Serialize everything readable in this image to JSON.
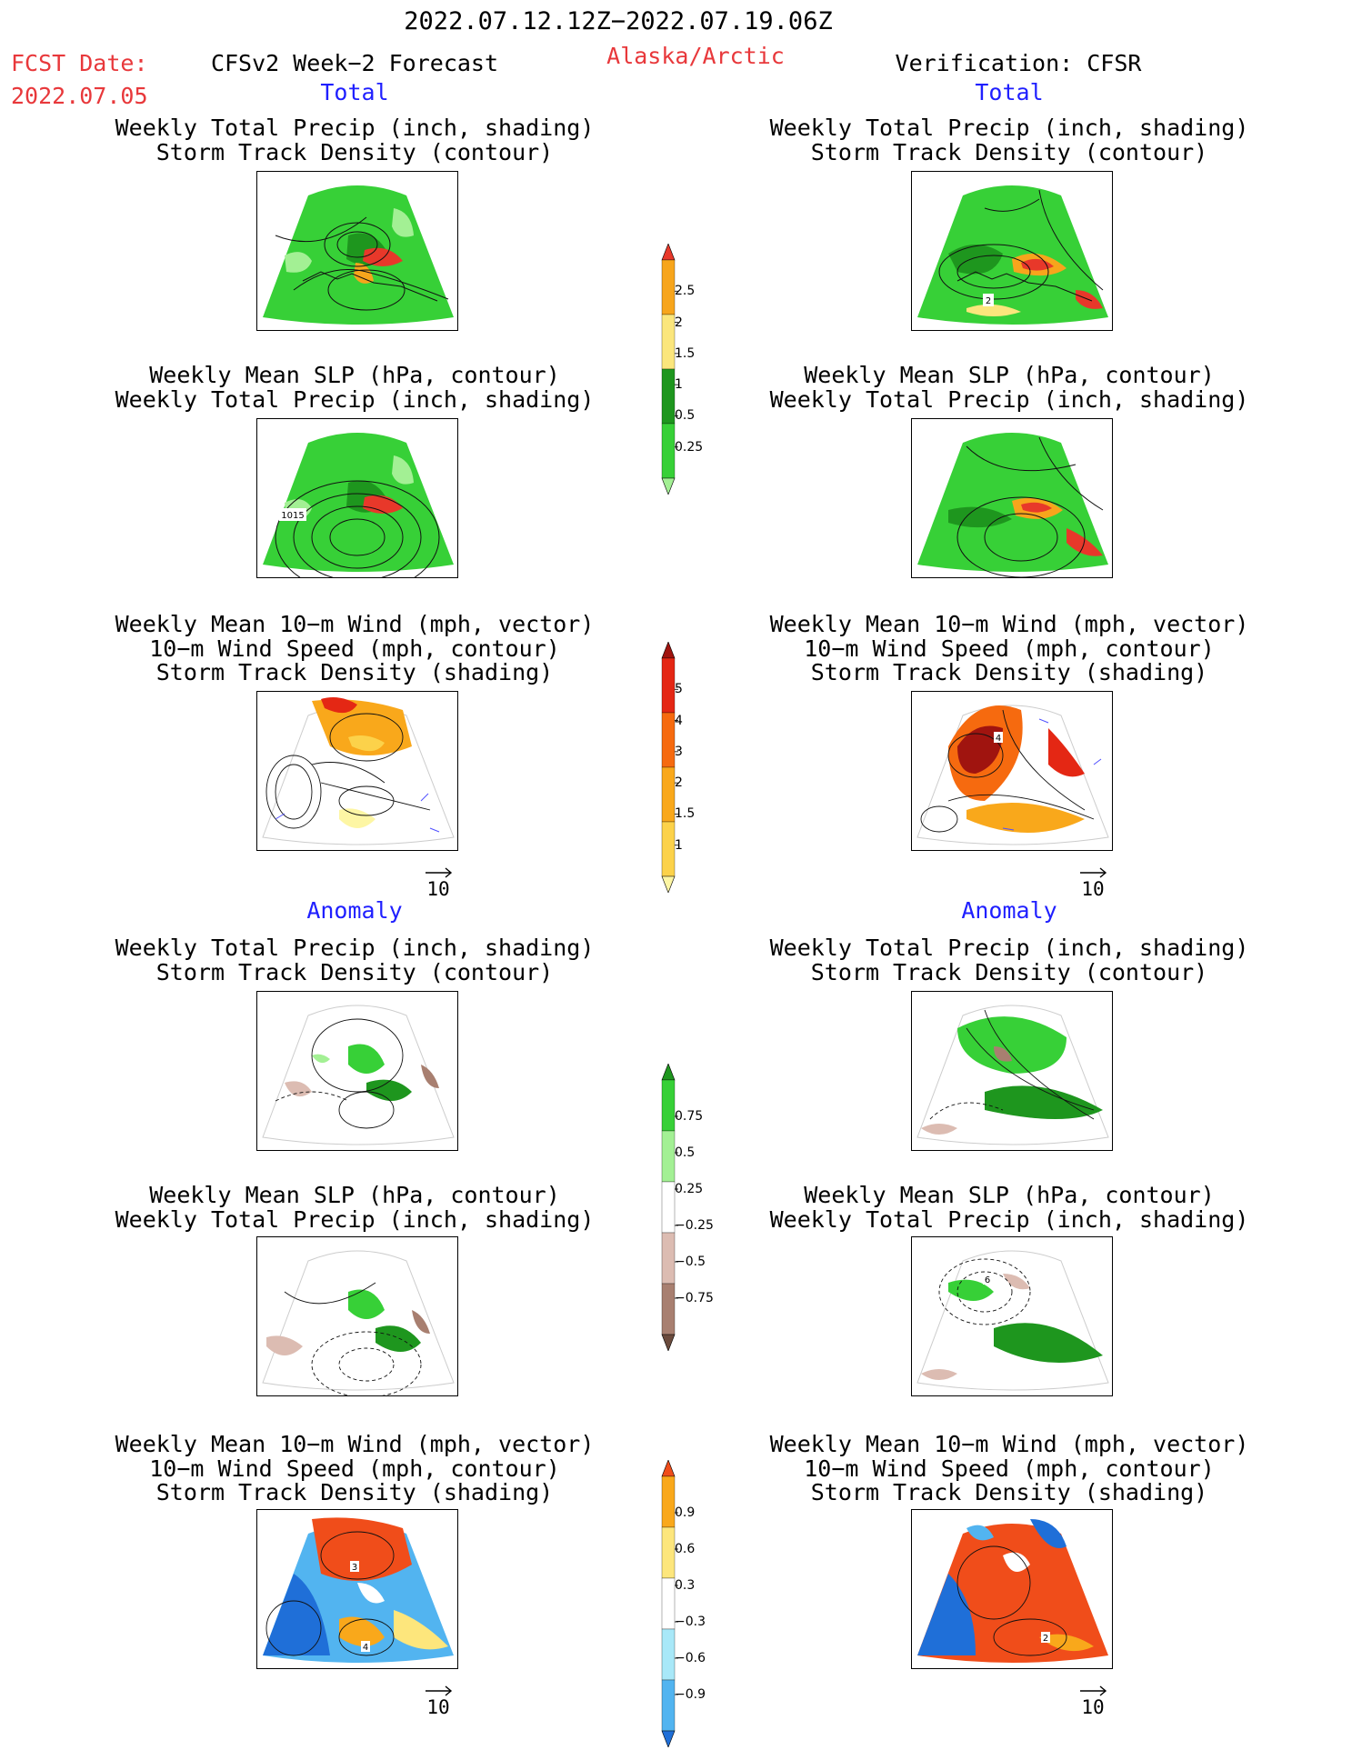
{
  "header": {
    "period": "2022.07.12.12Z−2022.07.19.06Z",
    "fcst_date_label": "FCST Date:",
    "fcst_date_value": "2022.07.05",
    "model": "CFSv2 Week−2 Forecast",
    "region": "Alaska/Arctic",
    "verification": "Verification: CFSR"
  },
  "sections": {
    "total": "Total",
    "anomaly": "Anomaly"
  },
  "titles": {
    "precip_storm": [
      "Weekly Total Precip (inch, shading)",
      "Storm Track Density (contour)"
    ],
    "slp_precip": [
      "Weekly Mean SLP (hPa, contour)",
      "Weekly Total Precip (inch, shading)"
    ],
    "wind": [
      "Weekly Mean 10−m Wind (mph, vector)",
      "10−m Wind Speed (mph, contour)",
      "Storm Track Density (shading)"
    ]
  },
  "reference_vector": "10",
  "panel_labels": {
    "fcst_slp": "1015",
    "cfsr_storm": "2",
    "fcst_anom_wind_a": "3",
    "fcst_anom_wind_b": "4",
    "cfsr_anom_slp": "6",
    "cfsr_anom_wind": "2",
    "cfsr_wind": "4"
  },
  "colorbars": {
    "total_precip": {
      "labels": [
        "2.5",
        "2",
        "1.5",
        "1",
        "0.5",
        "0.25"
      ],
      "colors": [
        "#e8382a",
        "#f7a51c",
        "#fbe67c",
        "#1e961e",
        "#37d037",
        "#a3f094"
      ]
    },
    "storm_density": {
      "labels": [
        "5",
        "4",
        "3",
        "2",
        "1.5",
        "1"
      ],
      "colors": [
        "#a0140f",
        "#e42714",
        "#f66a0f",
        "#f9a81b",
        "#fcd24a",
        "#fdf6a4"
      ]
    },
    "precip_anomaly": {
      "labels": [
        "0.75",
        "0.5",
        "0.25",
        "−0.25",
        "−0.5",
        "−0.75"
      ],
      "colors": [
        "#1e961e",
        "#37d037",
        "#a3f094",
        "#ffffff",
        "#dcbcb2",
        "#a87f70",
        "#6b4b3d"
      ]
    },
    "wind_anomaly": {
      "labels": [
        "0.9",
        "0.6",
        "0.3",
        "−0.3",
        "−0.6",
        "−0.9"
      ],
      "colors": [
        "#f04d1a",
        "#f9a81b",
        "#fde67c",
        "#ffffff",
        "#a8e8f8",
        "#52b4f0",
        "#1f6fd8"
      ]
    }
  }
}
